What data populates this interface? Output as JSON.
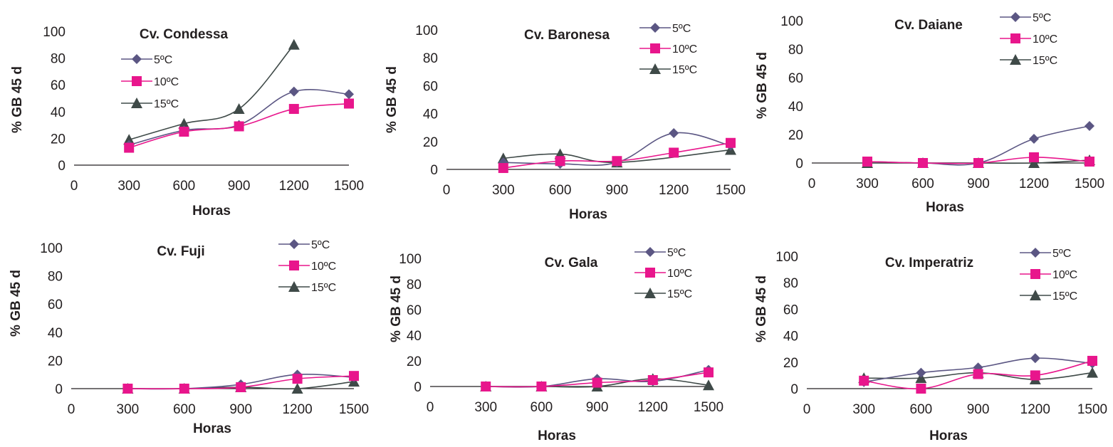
{
  "series_colors": {
    "5C": "#5b5683",
    "10C": "#e8168c",
    "15C": "#3f4a48"
  },
  "chart_data": [
    {
      "type": "line",
      "title": "Cv. Condessa",
      "xlabel": "Horas",
      "ylabel": "% GB 45 d",
      "x_ticks": [
        0,
        300,
        600,
        900,
        1200,
        1500
      ],
      "y_ticks": [
        0,
        20,
        40,
        60,
        80,
        100
      ],
      "xlim": [
        0,
        1500
      ],
      "ylim": [
        0,
        100
      ],
      "grid": false,
      "legend_position": "top-left",
      "x": [
        300,
        600,
        900,
        1200,
        1500
      ],
      "series": [
        {
          "name": "5ºC",
          "marker": "diamond",
          "color": "#5b5683",
          "values": [
            15,
            26,
            30,
            55,
            53
          ]
        },
        {
          "name": "10ºC",
          "marker": "square",
          "color": "#e8168c",
          "values": [
            13,
            25,
            29,
            42,
            46
          ]
        },
        {
          "name": "15ºC",
          "marker": "triangle",
          "color": "#3f4a48",
          "values": [
            19,
            31,
            42,
            90,
            null
          ]
        }
      ]
    },
    {
      "type": "line",
      "title": "Cv. Baronesa",
      "xlabel": "Horas",
      "ylabel": "% GB 45 d",
      "x_ticks": [
        0,
        300,
        600,
        900,
        1200,
        1500
      ],
      "y_ticks": [
        0,
        20,
        40,
        60,
        80,
        100
      ],
      "xlim": [
        0,
        1500
      ],
      "ylim": [
        0,
        100
      ],
      "grid": false,
      "legend_position": "top-right",
      "x": [
        300,
        600,
        900,
        1200,
        1500
      ],
      "series": [
        {
          "name": "5ºC",
          "marker": "diamond",
          "color": "#5b5683",
          "values": [
            5,
            4,
            5,
            26,
            17
          ]
        },
        {
          "name": "10ºC",
          "marker": "square",
          "color": "#e8168c",
          "values": [
            1,
            6,
            6,
            12,
            19
          ]
        },
        {
          "name": "15ºC",
          "marker": "triangle",
          "color": "#3f4a48",
          "values": [
            8,
            11,
            5,
            null,
            14
          ]
        }
      ]
    },
    {
      "type": "line",
      "title": "Cv. Daiane",
      "xlabel": "Horas",
      "ylabel": "% GB 45 d",
      "x_ticks": [
        0,
        300,
        600,
        900,
        1200,
        1500
      ],
      "y_ticks": [
        0,
        20,
        40,
        60,
        80,
        100
      ],
      "xlim": [
        0,
        1500
      ],
      "ylim": [
        0,
        100
      ],
      "grid": false,
      "legend_position": "top-right",
      "x": [
        300,
        600,
        900,
        1200,
        1500
      ],
      "series": [
        {
          "name": "5ºC",
          "marker": "diamond",
          "color": "#5b5683",
          "values": [
            1,
            0,
            0,
            17,
            26
          ]
        },
        {
          "name": "10ºC",
          "marker": "square",
          "color": "#e8168c",
          "values": [
            1,
            0,
            0,
            4,
            1
          ]
        },
        {
          "name": "15ºC",
          "marker": "triangle",
          "color": "#3f4a48",
          "values": [
            0,
            0,
            0,
            0,
            2
          ]
        }
      ]
    },
    {
      "type": "line",
      "title": "Cv. Fuji",
      "xlabel": "Horas",
      "ylabel": "% GB 45 d",
      "x_ticks": [
        0,
        300,
        600,
        900,
        1200,
        1500
      ],
      "y_ticks": [
        0,
        20,
        40,
        60,
        80,
        100
      ],
      "xlim": [
        0,
        1500
      ],
      "ylim": [
        0,
        100
      ],
      "grid": false,
      "legend_position": "top-right",
      "x": [
        300,
        600,
        900,
        1200,
        1500
      ],
      "series": [
        {
          "name": "5ºC",
          "marker": "diamond",
          "color": "#5b5683",
          "values": [
            0,
            0,
            3,
            10,
            8
          ]
        },
        {
          "name": "10ºC",
          "marker": "square",
          "color": "#e8168c",
          "values": [
            0,
            0,
            1,
            7,
            9
          ]
        },
        {
          "name": "15ºC",
          "marker": "triangle",
          "color": "#3f4a48",
          "values": [
            0,
            0,
            1,
            0,
            5
          ]
        }
      ]
    },
    {
      "type": "line",
      "title": "Cv. Gala",
      "xlabel": "Horas",
      "ylabel": "% GB 45 d",
      "x_ticks": [
        0,
        300,
        600,
        900,
        1200,
        1500
      ],
      "y_ticks": [
        0,
        20,
        40,
        60,
        80,
        100
      ],
      "xlim": [
        0,
        1500
      ],
      "ylim": [
        0,
        100
      ],
      "grid": false,
      "legend_position": "top-right",
      "x": [
        300,
        600,
        900,
        1200,
        1500
      ],
      "series": [
        {
          "name": "5ºC",
          "marker": "diamond",
          "color": "#5b5683",
          "values": [
            0,
            0,
            6,
            4,
            13
          ]
        },
        {
          "name": "10ºC",
          "marker": "square",
          "color": "#e8168c",
          "values": [
            0,
            0,
            3,
            5,
            11
          ]
        },
        {
          "name": "15ºC",
          "marker": "triangle",
          "color": "#3f4a48",
          "values": [
            0,
            0,
            0,
            6,
            1
          ]
        }
      ]
    },
    {
      "type": "line",
      "title": "Cv. Imperatriz",
      "xlabel": "Horas",
      "ylabel": "% GB 45 d",
      "x_ticks": [
        0,
        300,
        600,
        900,
        1200,
        1500
      ],
      "y_ticks": [
        0,
        20,
        40,
        60,
        80,
        100
      ],
      "xlim": [
        0,
        1500
      ],
      "ylim": [
        0,
        100
      ],
      "grid": false,
      "legend_position": "top-right",
      "x": [
        300,
        600,
        900,
        1200,
        1500
      ],
      "series": [
        {
          "name": "5ºC",
          "marker": "diamond",
          "color": "#5b5683",
          "values": [
            5,
            12,
            16,
            23,
            19
          ]
        },
        {
          "name": "10ºC",
          "marker": "square",
          "color": "#e8168c",
          "values": [
            6,
            0,
            11,
            10,
            21
          ]
        },
        {
          "name": "15ºC",
          "marker": "triangle",
          "color": "#3f4a48",
          "values": [
            8,
            8,
            12,
            7,
            12
          ]
        }
      ]
    }
  ]
}
